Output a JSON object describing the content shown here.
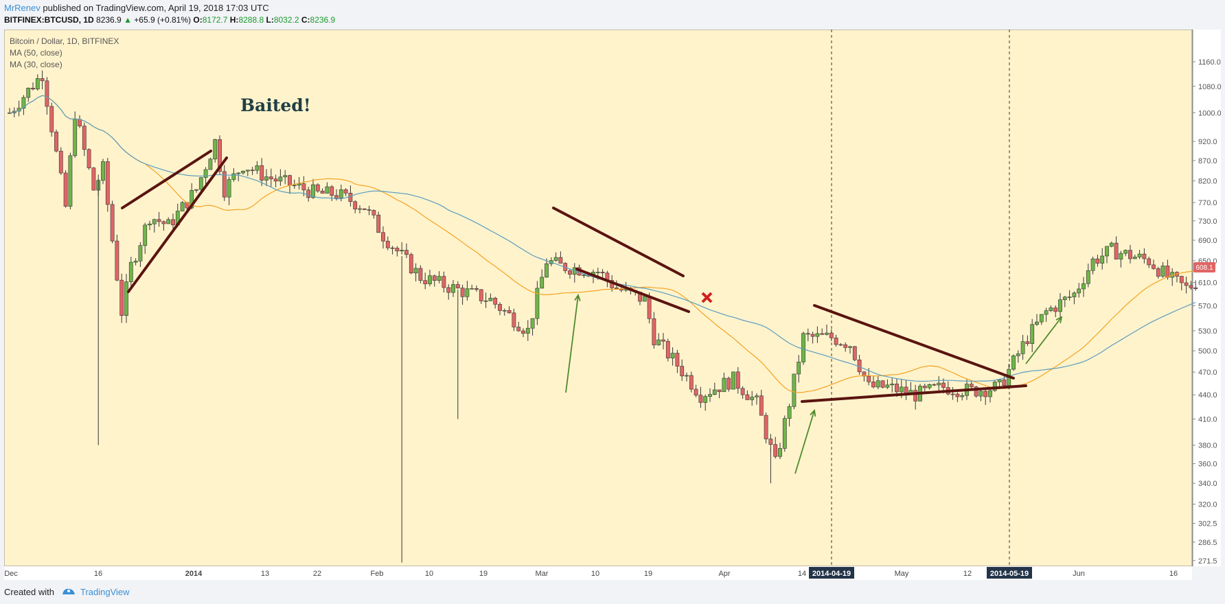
{
  "header": {
    "author": "MrRenev",
    "published": "published on TradingView.com, April 19, 2018 17:03 UTC",
    "symbol": "BITFINEX:BTCUSD, 1D",
    "last": "8236.9",
    "change_arrow": "▲",
    "change": "+65.9 (+0.81%)",
    "open_label": "O:",
    "open": "8172.7",
    "high_label": "H:",
    "high": "8288.8",
    "low_label": "L:",
    "low": "8032.2",
    "close_label": "C:",
    "close": "8236.9"
  },
  "legend": {
    "title": "Bitcoin / Dollar, 1D, BITFINEX",
    "ma1": "MA (50, close)",
    "ma2": "MA (30, close)"
  },
  "annotation_text": "Baited!",
  "last_price_label": "608.1",
  "footer": {
    "created_with": "Created with",
    "brand": "TradingView"
  },
  "colors": {
    "background": "#fff3cc",
    "bull": "#6fb54a",
    "bear": "#e06565",
    "ma_fast": "#f4a321",
    "ma_slow": "#5a9cc0",
    "trendline": "#5a1410",
    "arrow": "#4e8a2a",
    "cross": "#d21f1f",
    "date_badge": "#23344a"
  },
  "chart_data": {
    "type": "candlestick",
    "series": [
      {
        "name": "Bitcoin / Dollar, 1D, BITFINEX"
      }
    ],
    "y_scale": "log",
    "ylim": [
      260,
      1210
    ],
    "y_ticks": [
      "1160.0",
      "1080.0",
      "1000.0",
      "920.0",
      "870.0",
      "820.0",
      "770.0",
      "730.0",
      "690.0",
      "650.0",
      "610.0",
      "570.0",
      "530.0",
      "500.0",
      "470.0",
      "440.0",
      "410.0",
      "380.0",
      "360.0",
      "340.0",
      "320.0",
      "302.5",
      "286.5",
      "271.5"
    ],
    "x_ticks": [
      "Dec",
      "16",
      "2014",
      "13",
      "22",
      "Feb",
      "10",
      "19",
      "Mar",
      "10",
      "19",
      "Apr",
      "14",
      "May",
      "12",
      "Jun",
      "16"
    ],
    "date_markers": [
      "2014-04-19",
      "2014-05-19"
    ]
  }
}
